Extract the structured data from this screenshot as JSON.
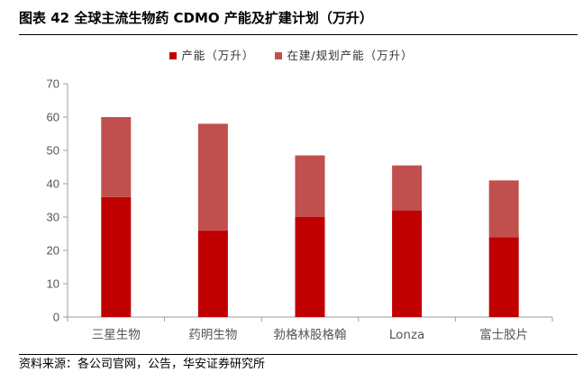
{
  "header": {
    "title": "图表 42  全球主流生物药 CDMO 产能及扩建计划（万升）"
  },
  "source": "资料来源：各公司官网，公告，华安证券研究所",
  "colors": {
    "capacity": "#c00000",
    "expansion": "#c0504d",
    "axis": "#9e9e9e",
    "tick_text": "#555555"
  },
  "chart_data": {
    "type": "bar",
    "stacked": true,
    "categories": [
      "三星生物",
      "药明生物",
      "勃格林股格翰",
      "Lonza",
      "富士胶片"
    ],
    "series": [
      {
        "name": "产能（万升）",
        "values": [
          36,
          26,
          30,
          32,
          24
        ]
      },
      {
        "name": "在建/规划产能（万升）",
        "values": [
          24,
          32,
          18.5,
          13.5,
          17
        ]
      }
    ],
    "ylim": [
      0,
      70
    ],
    "yticks": [
      "0",
      "10",
      "20",
      "30",
      "40",
      "50",
      "60",
      "70"
    ],
    "grid": false,
    "legend_position": "top-center"
  }
}
